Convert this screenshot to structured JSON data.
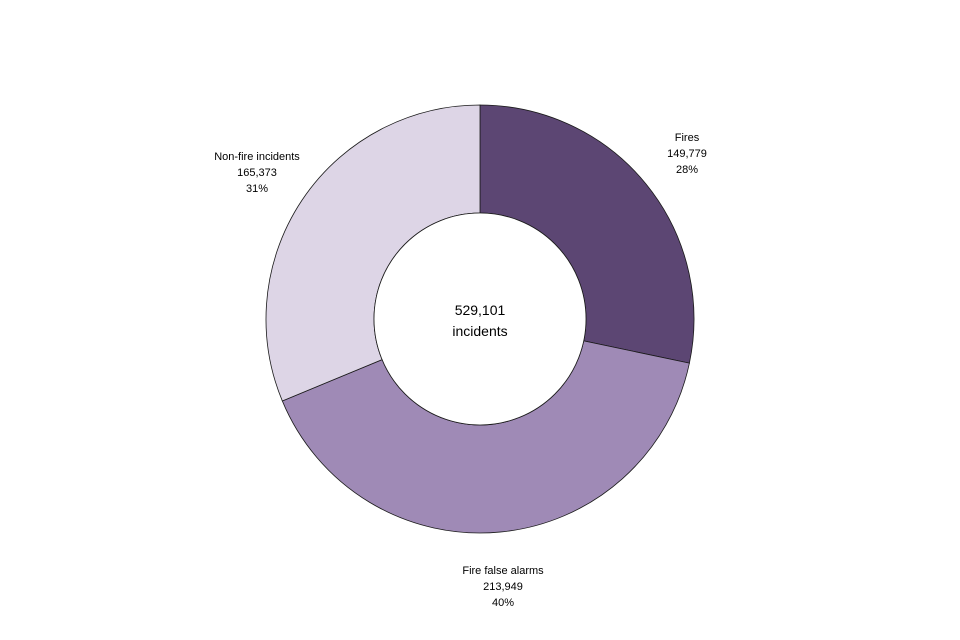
{
  "chart_data": {
    "type": "pie",
    "style": "donut",
    "center_text": [
      "529,101",
      "incidents"
    ],
    "slices": [
      {
        "name": "Fires",
        "value": 149779,
        "percent_label": "28%",
        "value_label": "149,779",
        "color": "#5c4673"
      },
      {
        "name": "Fire false alarms",
        "value": 213949,
        "percent_label": "40%",
        "value_label": "213,949",
        "color": "#9f8ab6"
      },
      {
        "name": "Non-fire incidents",
        "value": 165373,
        "percent_label": "31%",
        "value_label": "165,373",
        "color": "#ddd5e6"
      }
    ]
  }
}
